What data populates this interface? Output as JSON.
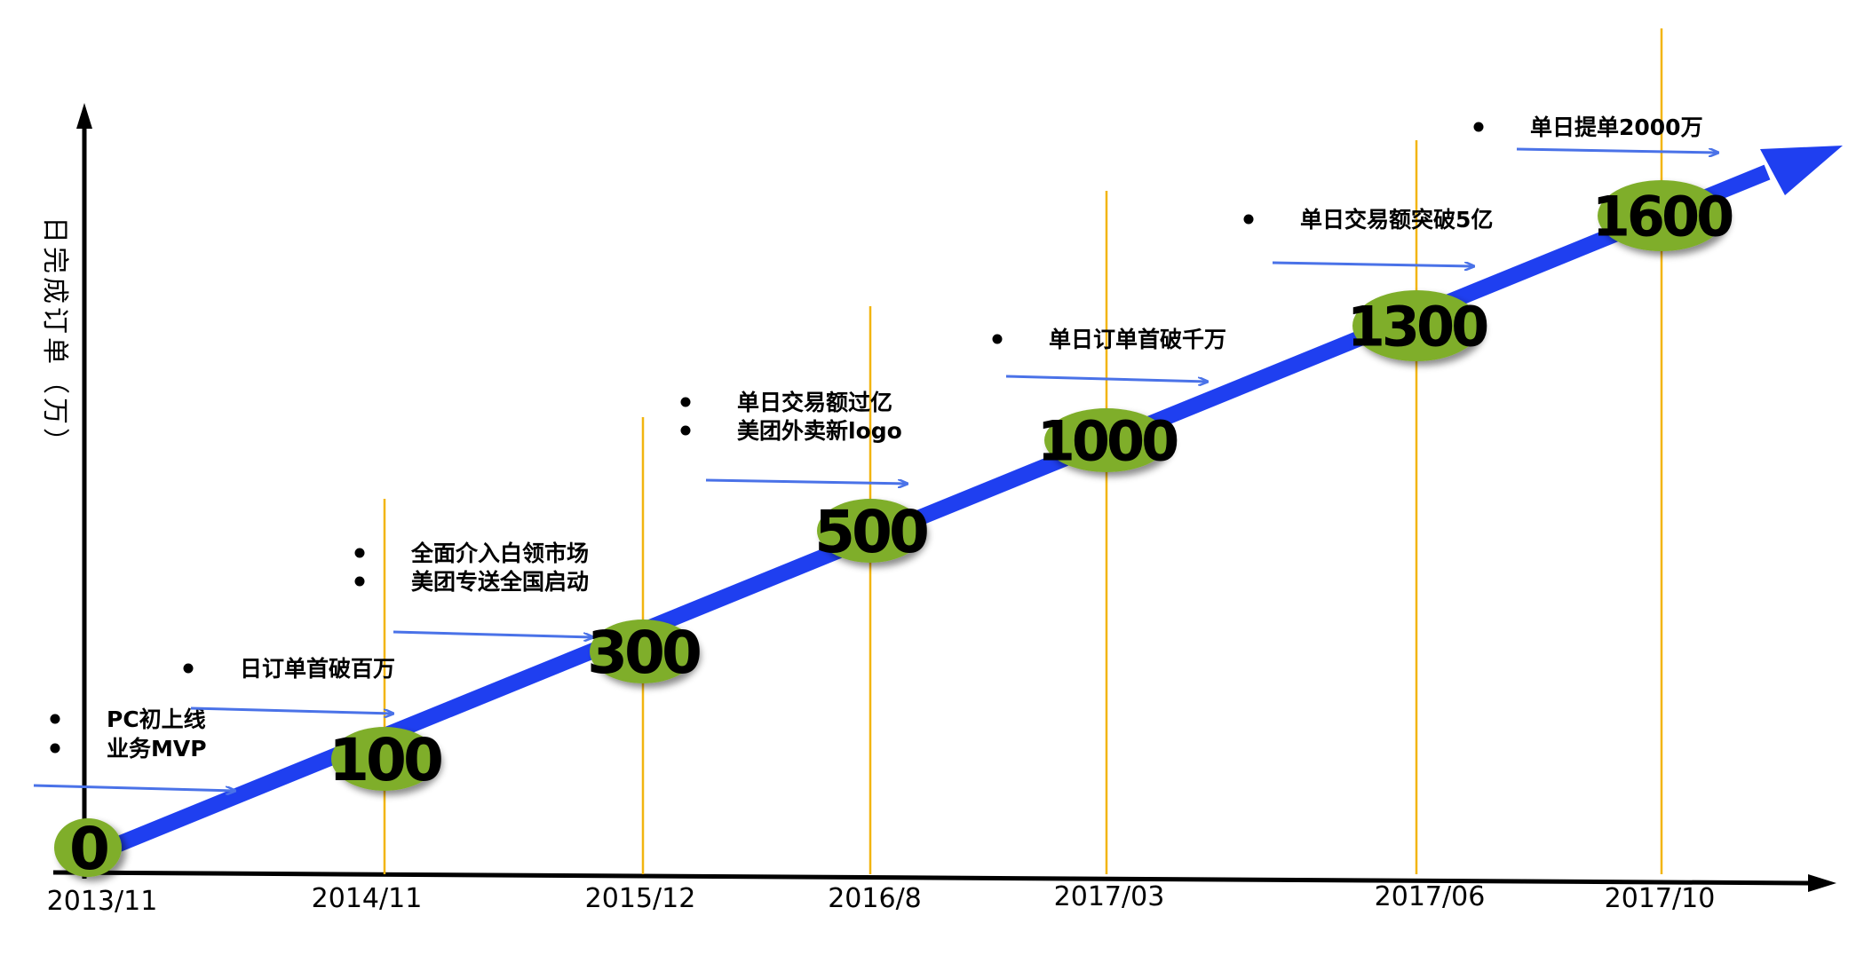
{
  "y_axis_label": "日完成订单（万）",
  "colors": {
    "trend_arrow": "#1f3ff0",
    "milestone_fill": "#7fae2b",
    "milestone_text": "#000000",
    "guide_line": "#f2b50f",
    "note_arrow": "#4a72e8",
    "axis": "#000000"
  },
  "milestones": [
    {
      "date": "2013/11",
      "value": "0",
      "notes": [
        "PC初上线",
        "业务MVP"
      ]
    },
    {
      "date": "2014/11",
      "value": "100",
      "notes": [
        "日订单首破百万"
      ]
    },
    {
      "date": "2015/12",
      "value": "300",
      "notes": [
        "全面介入白领市场",
        "美团专送全国启动"
      ]
    },
    {
      "date": "2016/8",
      "value": "500",
      "notes": [
        "单日交易额过亿",
        "美团外卖新logo"
      ]
    },
    {
      "date": "2017/03",
      "value": "1000",
      "notes": [
        "单日订单首破千万"
      ]
    },
    {
      "date": "2017/06",
      "value": "1300",
      "notes": [
        "单日交易额突破5亿"
      ]
    },
    {
      "date": "2017/10",
      "value": "1600",
      "notes": [
        "单日提单2000万"
      ]
    }
  ]
}
